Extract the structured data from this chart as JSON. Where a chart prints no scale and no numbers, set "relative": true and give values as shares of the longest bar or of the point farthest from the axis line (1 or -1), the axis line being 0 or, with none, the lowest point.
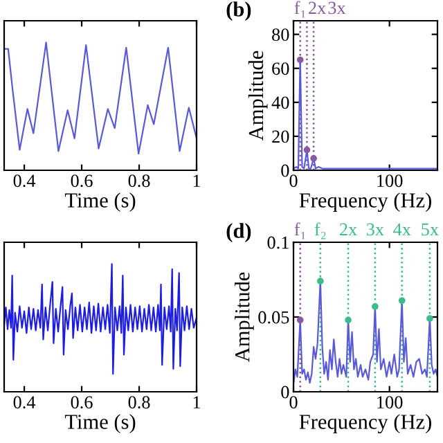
{
  "chart_data": [
    {
      "type": "line",
      "relative": true,
      "xlim": [
        0.33,
        1
      ],
      "xticks": [
        0.4,
        0.6,
        0.8,
        1
      ],
      "xlabel": "Time (s)",
      "tick_labels": "x",
      "grid": false,
      "series": [
        {
          "color": "#5a5ad8",
          "x": [
            0.33,
            0.344,
            0.36,
            0.384,
            0.411,
            0.432,
            0.476,
            0.519,
            0.551,
            0.575,
            0.615,
            0.659,
            0.691,
            0.715,
            0.755,
            0.798,
            0.83,
            0.851,
            0.901,
            0.941,
            0.973,
            1.0
          ],
          "values": [
            0.95,
            0.95,
            0.62,
            0.16,
            0.48,
            0.29,
            1.0,
            0.15,
            0.47,
            0.25,
            0.98,
            0.17,
            0.48,
            0.33,
            0.96,
            0.13,
            0.51,
            0.36,
            0.96,
            0.15,
            0.49,
            0.25
          ]
        }
      ]
    },
    {
      "type": "line",
      "title": "(b)",
      "xlim": [
        0,
        150
      ],
      "xticks": [
        0,
        100
      ],
      "ylim": [
        0,
        88
      ],
      "yticks": [
        0,
        20,
        40,
        60,
        80
      ],
      "xlabel": "Frequency (Hz)",
      "ylabel": "Amplitude",
      "grid": false,
      "series": [
        {
          "color": "#5a5ad8",
          "x": [
            0,
            3,
            5,
            7,
            9,
            11,
            14,
            16,
            18,
            21,
            23,
            26,
            30,
            40,
            60,
            80,
            100,
            130,
            150
          ],
          "values": [
            1,
            2,
            1,
            65,
            2,
            1,
            12,
            1,
            1,
            7,
            1,
            2,
            1,
            1,
            1,
            1,
            1,
            1,
            1
          ]
        },
        {
          "type": "scatter",
          "marker": "circle",
          "color": "#8a5aa0",
          "x": [
            7,
            14,
            21
          ],
          "values": [
            65,
            12,
            7
          ]
        }
      ],
      "ref_lines": [
        {
          "axis": "x",
          "value": 7,
          "label": "f₁",
          "color": "#8a5aa0",
          "line_style": "dotted"
        },
        {
          "axis": "x",
          "value": 14,
          "label": "2x",
          "color": "#8a5aa0",
          "line_style": "dotted"
        },
        {
          "axis": "x",
          "value": 21,
          "label": "3x",
          "color": "#8a5aa0",
          "line_style": "dotted"
        }
      ]
    },
    {
      "type": "line",
      "relative": true,
      "xlim": [
        0.33,
        1
      ],
      "xticks": [
        0.4,
        0.6,
        0.8,
        1
      ],
      "xlabel": "Time (s)",
      "tick_labels": "x",
      "grid": false,
      "series": [
        {
          "color": "#1e1ee0",
          "x": [
            0.33,
            0.336,
            0.342,
            0.348,
            0.354,
            0.358,
            0.362,
            0.368,
            0.376,
            0.384,
            0.392,
            0.4,
            0.408,
            0.416,
            0.424,
            0.432,
            0.44,
            0.448,
            0.456,
            0.462,
            0.466,
            0.474,
            0.482,
            0.49,
            0.498,
            0.502,
            0.51,
            0.518,
            0.526,
            0.533,
            0.537,
            0.544,
            0.552,
            0.56,
            0.566,
            0.57,
            0.578,
            0.586,
            0.594,
            0.602,
            0.61,
            0.618,
            0.626,
            0.634,
            0.642,
            0.65,
            0.658,
            0.666,
            0.674,
            0.682,
            0.69,
            0.698,
            0.705,
            0.709,
            0.716,
            0.724,
            0.732,
            0.738,
            0.743,
            0.747,
            0.754,
            0.762,
            0.77,
            0.778,
            0.786,
            0.794,
            0.802,
            0.81,
            0.818,
            0.826,
            0.834,
            0.842,
            0.85,
            0.858,
            0.866,
            0.872,
            0.876,
            0.88,
            0.888,
            0.896,
            0.904,
            0.91,
            0.915,
            0.919,
            0.926,
            0.932,
            0.939,
            0.943,
            0.95,
            0.958,
            0.966,
            0.974,
            0.982,
            0.99,
            1.0
          ],
          "values": [
            0.52,
            0.66,
            0.49,
            0.64,
            0.5,
            0.91,
            0.25,
            0.62,
            0.47,
            0.67,
            0.5,
            0.63,
            0.46,
            0.66,
            0.49,
            0.65,
            0.48,
            0.64,
            0.5,
            0.84,
            0.41,
            0.66,
            0.48,
            0.68,
            0.86,
            0.38,
            0.65,
            0.47,
            0.66,
            0.82,
            0.29,
            0.64,
            0.49,
            0.67,
            0.77,
            0.42,
            0.66,
            0.48,
            0.68,
            0.47,
            0.66,
            0.49,
            0.7,
            0.46,
            0.67,
            0.48,
            0.69,
            0.47,
            0.66,
            0.49,
            0.68,
            0.46,
            1.0,
            0.14,
            0.66,
            0.48,
            0.67,
            0.46,
            0.91,
            0.29,
            0.66,
            0.48,
            0.68,
            0.47,
            0.66,
            0.49,
            0.67,
            0.47,
            0.65,
            0.49,
            0.68,
            0.48,
            0.66,
            0.47,
            0.68,
            0.48,
            0.84,
            0.21,
            0.66,
            0.49,
            0.67,
            0.47,
            0.96,
            0.18,
            0.65,
            0.48,
            0.93,
            0.2,
            0.66,
            0.48,
            0.67,
            0.49,
            0.65,
            0.5,
            0.58
          ]
        }
      ]
    },
    {
      "type": "line",
      "title": "(d)",
      "xlim": [
        0,
        150
      ],
      "xticks": [
        0,
        100
      ],
      "ylim": [
        0,
        0.1
      ],
      "yticks": [
        0,
        0.05,
        0.1
      ],
      "xlabel": "Frequency (Hz)",
      "ylabel": "Amplitude",
      "grid": false,
      "series": [
        {
          "color": "#5a5ad8",
          "x": [
            0,
            2,
            4,
            7,
            9,
            11,
            13,
            15,
            17,
            19,
            21,
            23,
            25,
            28,
            30,
            32,
            34,
            36,
            38,
            40,
            42,
            44,
            46,
            48,
            50,
            52,
            55,
            57,
            59,
            61,
            63,
            65,
            67,
            70,
            72,
            75,
            78,
            80,
            83,
            85,
            87,
            89,
            91,
            94,
            97,
            100,
            102,
            105,
            108,
            110,
            113,
            115,
            117,
            119,
            122,
            125,
            128,
            131,
            134,
            137,
            139,
            142,
            144,
            146,
            148,
            150
          ],
          "values": [
            0.005,
            0.015,
            0.01,
            0.048,
            0.012,
            0.015,
            0.008,
            0.013,
            0.006,
            0.012,
            0.03,
            0.022,
            0.032,
            0.074,
            0.03,
            0.012,
            0.02,
            0.008,
            0.028,
            0.015,
            0.035,
            0.02,
            0.01,
            0.022,
            0.012,
            0.018,
            0.01,
            0.048,
            0.02,
            0.04,
            0.015,
            0.022,
            0.01,
            0.018,
            0.01,
            0.015,
            0.008,
            0.02,
            0.025,
            0.057,
            0.02,
            0.042,
            0.015,
            0.022,
            0.01,
            0.02,
            0.012,
            0.025,
            0.01,
            0.015,
            0.061,
            0.02,
            0.036,
            0.012,
            0.018,
            0.01,
            0.02,
            0.022,
            0.012,
            0.015,
            0.01,
            0.049,
            0.018,
            0.012,
            0.015,
            0.01
          ]
        },
        {
          "type": "scatter",
          "marker": "circle",
          "color": "#8a5aa0",
          "x": [
            7
          ],
          "values": [
            0.048
          ]
        },
        {
          "type": "scatter",
          "marker": "circle",
          "color": "#3dbb8a",
          "x": [
            28,
            57,
            85,
            113,
            142
          ],
          "values": [
            0.074,
            0.048,
            0.057,
            0.061,
            0.049
          ]
        }
      ],
      "ref_lines": [
        {
          "axis": "x",
          "value": 7,
          "label": "f₁",
          "color": "#8a5aa0",
          "line_style": "dotted"
        },
        {
          "axis": "x",
          "value": 28,
          "label": "f₂",
          "color": "#3dbb8a",
          "line_style": "dotted"
        },
        {
          "axis": "x",
          "value": 57,
          "label": "2x",
          "color": "#3dbb8a",
          "line_style": "dotted"
        },
        {
          "axis": "x",
          "value": 85,
          "label": "3x",
          "color": "#3dbb8a",
          "line_style": "dotted"
        },
        {
          "axis": "x",
          "value": 113,
          "label": "4x",
          "color": "#3dbb8a",
          "line_style": "dotted"
        },
        {
          "axis": "x",
          "value": 142,
          "label": "5x",
          "color": "#3dbb8a",
          "line_style": "dotted"
        }
      ]
    }
  ]
}
